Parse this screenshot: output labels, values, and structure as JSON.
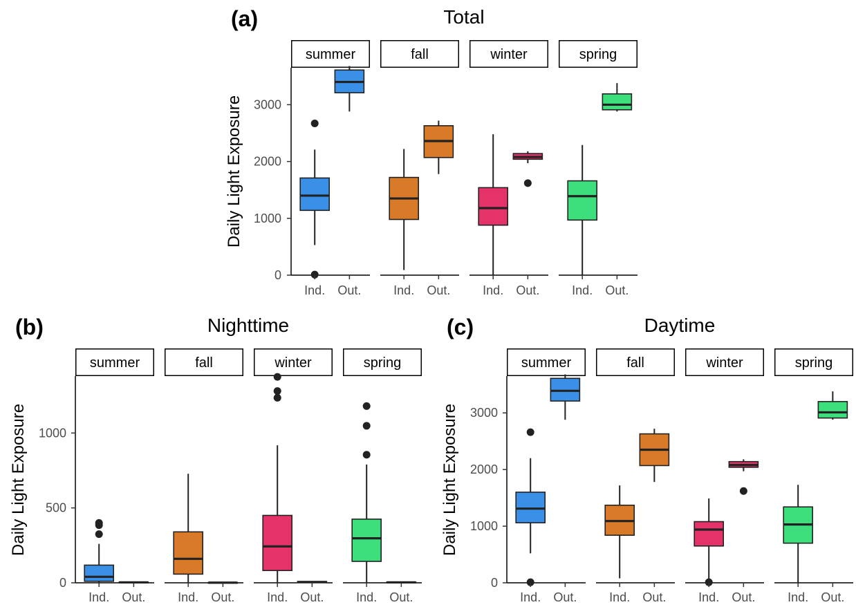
{
  "chart_data": [
    {
      "type": "boxplot",
      "panel_tag": "(a)",
      "title": "Total",
      "ylabel": "Daily Light Exposure",
      "ylim": [
        0,
        3650
      ],
      "yticks": [
        0,
        1000,
        2000,
        3000
      ],
      "categories": [
        "Ind.",
        "Out."
      ],
      "facets": [
        {
          "label": "summer",
          "color": "#3a8fe6",
          "boxes": [
            {
              "category": "Ind.",
              "whisker_low": 530,
              "q1": 1140,
              "median": 1400,
              "q3": 1710,
              "whisker_high": 2210,
              "outliers": [
                2670,
                10
              ]
            },
            {
              "category": "Out.",
              "whisker_low": 2880,
              "q1": 3210,
              "median": 3400,
              "q3": 3610,
              "whisker_high": 3680,
              "outliers": []
            }
          ]
        },
        {
          "label": "fall",
          "color": "#d97a29",
          "boxes": [
            {
              "category": "Ind.",
              "whisker_low": 90,
              "q1": 980,
              "median": 1350,
              "q3": 1720,
              "whisker_high": 2220,
              "outliers": []
            },
            {
              "category": "Out.",
              "whisker_low": 1780,
              "q1": 2070,
              "median": 2360,
              "q3": 2630,
              "whisker_high": 2720,
              "outliers": []
            }
          ]
        },
        {
          "label": "winter",
          "color": "#e5336a",
          "boxes": [
            {
              "category": "Ind.",
              "whisker_low": 0,
              "q1": 880,
              "median": 1180,
              "q3": 1540,
              "whisker_high": 2480,
              "outliers": []
            },
            {
              "category": "Out.",
              "whisker_low": 1970,
              "q1": 2040,
              "median": 2080,
              "q3": 2140,
              "whisker_high": 2180,
              "outliers": [
                1620
              ]
            }
          ]
        },
        {
          "label": "spring",
          "color": "#3ddf7d",
          "boxes": [
            {
              "category": "Ind.",
              "whisker_low": 0,
              "q1": 970,
              "median": 1390,
              "q3": 1660,
              "whisker_high": 2290,
              "outliers": []
            },
            {
              "category": "Out.",
              "whisker_low": 2880,
              "q1": 2910,
              "median": 3000,
              "q3": 3190,
              "whisker_high": 3380,
              "outliers": []
            }
          ]
        }
      ]
    },
    {
      "type": "boxplot",
      "panel_tag": "(b)",
      "title": "Nighttime",
      "ylabel": "Daily Light Exposure",
      "ylim": [
        0,
        1380
      ],
      "yticks": [
        0,
        500,
        1000
      ],
      "categories": [
        "Ind.",
        "Out."
      ],
      "facets": [
        {
          "label": "summer",
          "color": "#3a8fe6",
          "boxes": [
            {
              "category": "Ind.",
              "whisker_low": 0,
              "q1": 10,
              "median": 40,
              "q3": 118,
              "whisker_high": 260,
              "outliers": [
                400,
                385,
                325
              ]
            },
            {
              "category": "Out.",
              "whisker_low": 0,
              "q1": 1,
              "median": 3,
              "q3": 5,
              "whisker_high": 8,
              "outliers": []
            }
          ]
        },
        {
          "label": "fall",
          "color": "#d97a29",
          "boxes": [
            {
              "category": "Ind.",
              "whisker_low": 0,
              "q1": 58,
              "median": 160,
              "q3": 340,
              "whisker_high": 728,
              "outliers": []
            },
            {
              "category": "Out.",
              "whisker_low": 0,
              "q1": 0,
              "median": 1,
              "q3": 2,
              "whisker_high": 3,
              "outliers": []
            }
          ]
        },
        {
          "label": "winter",
          "color": "#e5336a",
          "boxes": [
            {
              "category": "Ind.",
              "whisker_low": 0,
              "q1": 82,
              "median": 243,
              "q3": 450,
              "whisker_high": 918,
              "outliers": [
                1375,
                1280,
                1235
              ]
            },
            {
              "category": "Out.",
              "whisker_low": 0,
              "q1": 2,
              "median": 5,
              "q3": 9,
              "whisker_high": 12,
              "outliers": []
            }
          ]
        },
        {
          "label": "spring",
          "color": "#3ddf7d",
          "boxes": [
            {
              "category": "Ind.",
              "whisker_low": 0,
              "q1": 143,
              "median": 297,
              "q3": 425,
              "whisker_high": 790,
              "outliers": [
                1180,
                1048,
                855
              ]
            },
            {
              "category": "Out.",
              "whisker_low": 0,
              "q1": 1,
              "median": 3,
              "q3": 5,
              "whisker_high": 7,
              "outliers": []
            }
          ]
        }
      ]
    },
    {
      "type": "boxplot",
      "panel_tag": "(c)",
      "title": "Daytime",
      "ylabel": "Daily Light Exposure",
      "ylim": [
        0,
        3650
      ],
      "yticks": [
        0,
        1000,
        2000,
        3000
      ],
      "categories": [
        "Ind.",
        "Out."
      ],
      "facets": [
        {
          "label": "summer",
          "color": "#3a8fe6",
          "boxes": [
            {
              "category": "Ind.",
              "whisker_low": 520,
              "q1": 1060,
              "median": 1310,
              "q3": 1600,
              "whisker_high": 2200,
              "outliers": [
                2660,
                10
              ]
            },
            {
              "category": "Out.",
              "whisker_low": 2880,
              "q1": 3210,
              "median": 3390,
              "q3": 3610,
              "whisker_high": 3680,
              "outliers": []
            }
          ]
        },
        {
          "label": "fall",
          "color": "#d97a29",
          "boxes": [
            {
              "category": "Ind.",
              "whisker_low": 80,
              "q1": 840,
              "median": 1090,
              "q3": 1370,
              "whisker_high": 1720,
              "outliers": []
            },
            {
              "category": "Out.",
              "whisker_low": 1780,
              "q1": 2070,
              "median": 2350,
              "q3": 2630,
              "whisker_high": 2720,
              "outliers": []
            }
          ]
        },
        {
          "label": "winter",
          "color": "#e5336a",
          "boxes": [
            {
              "category": "Ind.",
              "whisker_low": 60,
              "q1": 650,
              "median": 940,
              "q3": 1080,
              "whisker_high": 1490,
              "outliers": [
                10
              ]
            },
            {
              "category": "Out.",
              "whisker_low": 1970,
              "q1": 2040,
              "median": 2080,
              "q3": 2140,
              "whisker_high": 2180,
              "outliers": [
                1620
              ]
            }
          ]
        },
        {
          "label": "spring",
          "color": "#3ddf7d",
          "boxes": [
            {
              "category": "Ind.",
              "whisker_low": 0,
              "q1": 700,
              "median": 1030,
              "q3": 1340,
              "whisker_high": 1730,
              "outliers": []
            },
            {
              "category": "Out.",
              "whisker_low": 2880,
              "q1": 2910,
              "median": 3010,
              "q3": 3200,
              "whisker_high": 3380,
              "outliers": []
            }
          ]
        }
      ]
    }
  ]
}
